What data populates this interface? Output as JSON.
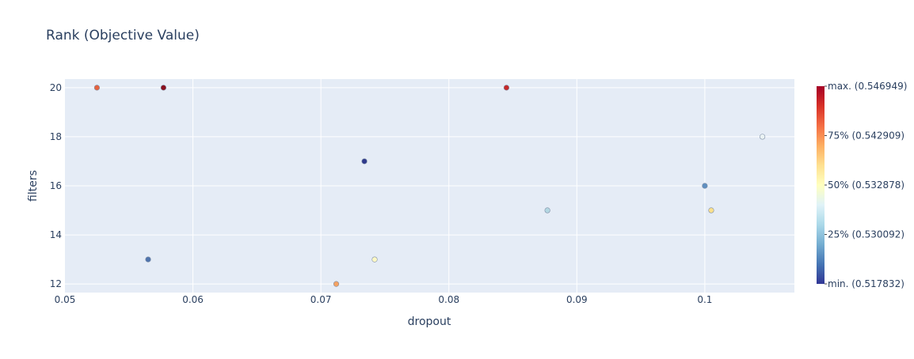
{
  "chart_data": {
    "type": "scatter",
    "title": "Rank (Objective Value)",
    "xlabel": "dropout",
    "ylabel": "filters",
    "xlim": [
      0.05,
      0.107
    ],
    "ylim": [
      11.65,
      20.35
    ],
    "xticks": [
      0.05,
      0.06,
      0.07,
      0.08,
      0.09,
      0.1
    ],
    "xtick_labels": [
      "0.05",
      "0.06",
      "0.07",
      "0.08",
      "0.09",
      "0.1"
    ],
    "yticks": [
      12,
      14,
      16,
      18,
      20
    ],
    "ytick_labels": [
      "12",
      "14",
      "16",
      "18",
      "20"
    ],
    "grid": true,
    "points": [
      {
        "x": 0.0525,
        "y": 20,
        "color": "#e5633f"
      },
      {
        "x": 0.0577,
        "y": 20,
        "color": "#8b0f1e"
      },
      {
        "x": 0.0845,
        "y": 20,
        "color": "#c62a2a"
      },
      {
        "x": 0.1045,
        "y": 18,
        "color": "#ebf3f4"
      },
      {
        "x": 0.0734,
        "y": 17,
        "color": "#2f3a8c"
      },
      {
        "x": 0.1,
        "y": 16,
        "color": "#5f8fc0"
      },
      {
        "x": 0.0877,
        "y": 15,
        "color": "#b3d7e2"
      },
      {
        "x": 0.1005,
        "y": 15,
        "color": "#fbe08c"
      },
      {
        "x": 0.0565,
        "y": 13,
        "color": "#4f74ad"
      },
      {
        "x": 0.0742,
        "y": 13,
        "color": "#fdf8c4"
      },
      {
        "x": 0.0712,
        "y": 12,
        "color": "#f4a262"
      }
    ],
    "colorbar": {
      "colors": [
        "#313695",
        "#4575b4",
        "#74add1",
        "#abd9e9",
        "#e0f3f8",
        "#ffffbf",
        "#fee090",
        "#fdae61",
        "#f46d43",
        "#d73027",
        "#a50026"
      ],
      "labels": [
        "max. (0.546949)",
        "75% (0.542909)",
        "50% (0.532878)",
        "25% (0.530092)",
        "min. (0.517832)"
      ]
    }
  }
}
